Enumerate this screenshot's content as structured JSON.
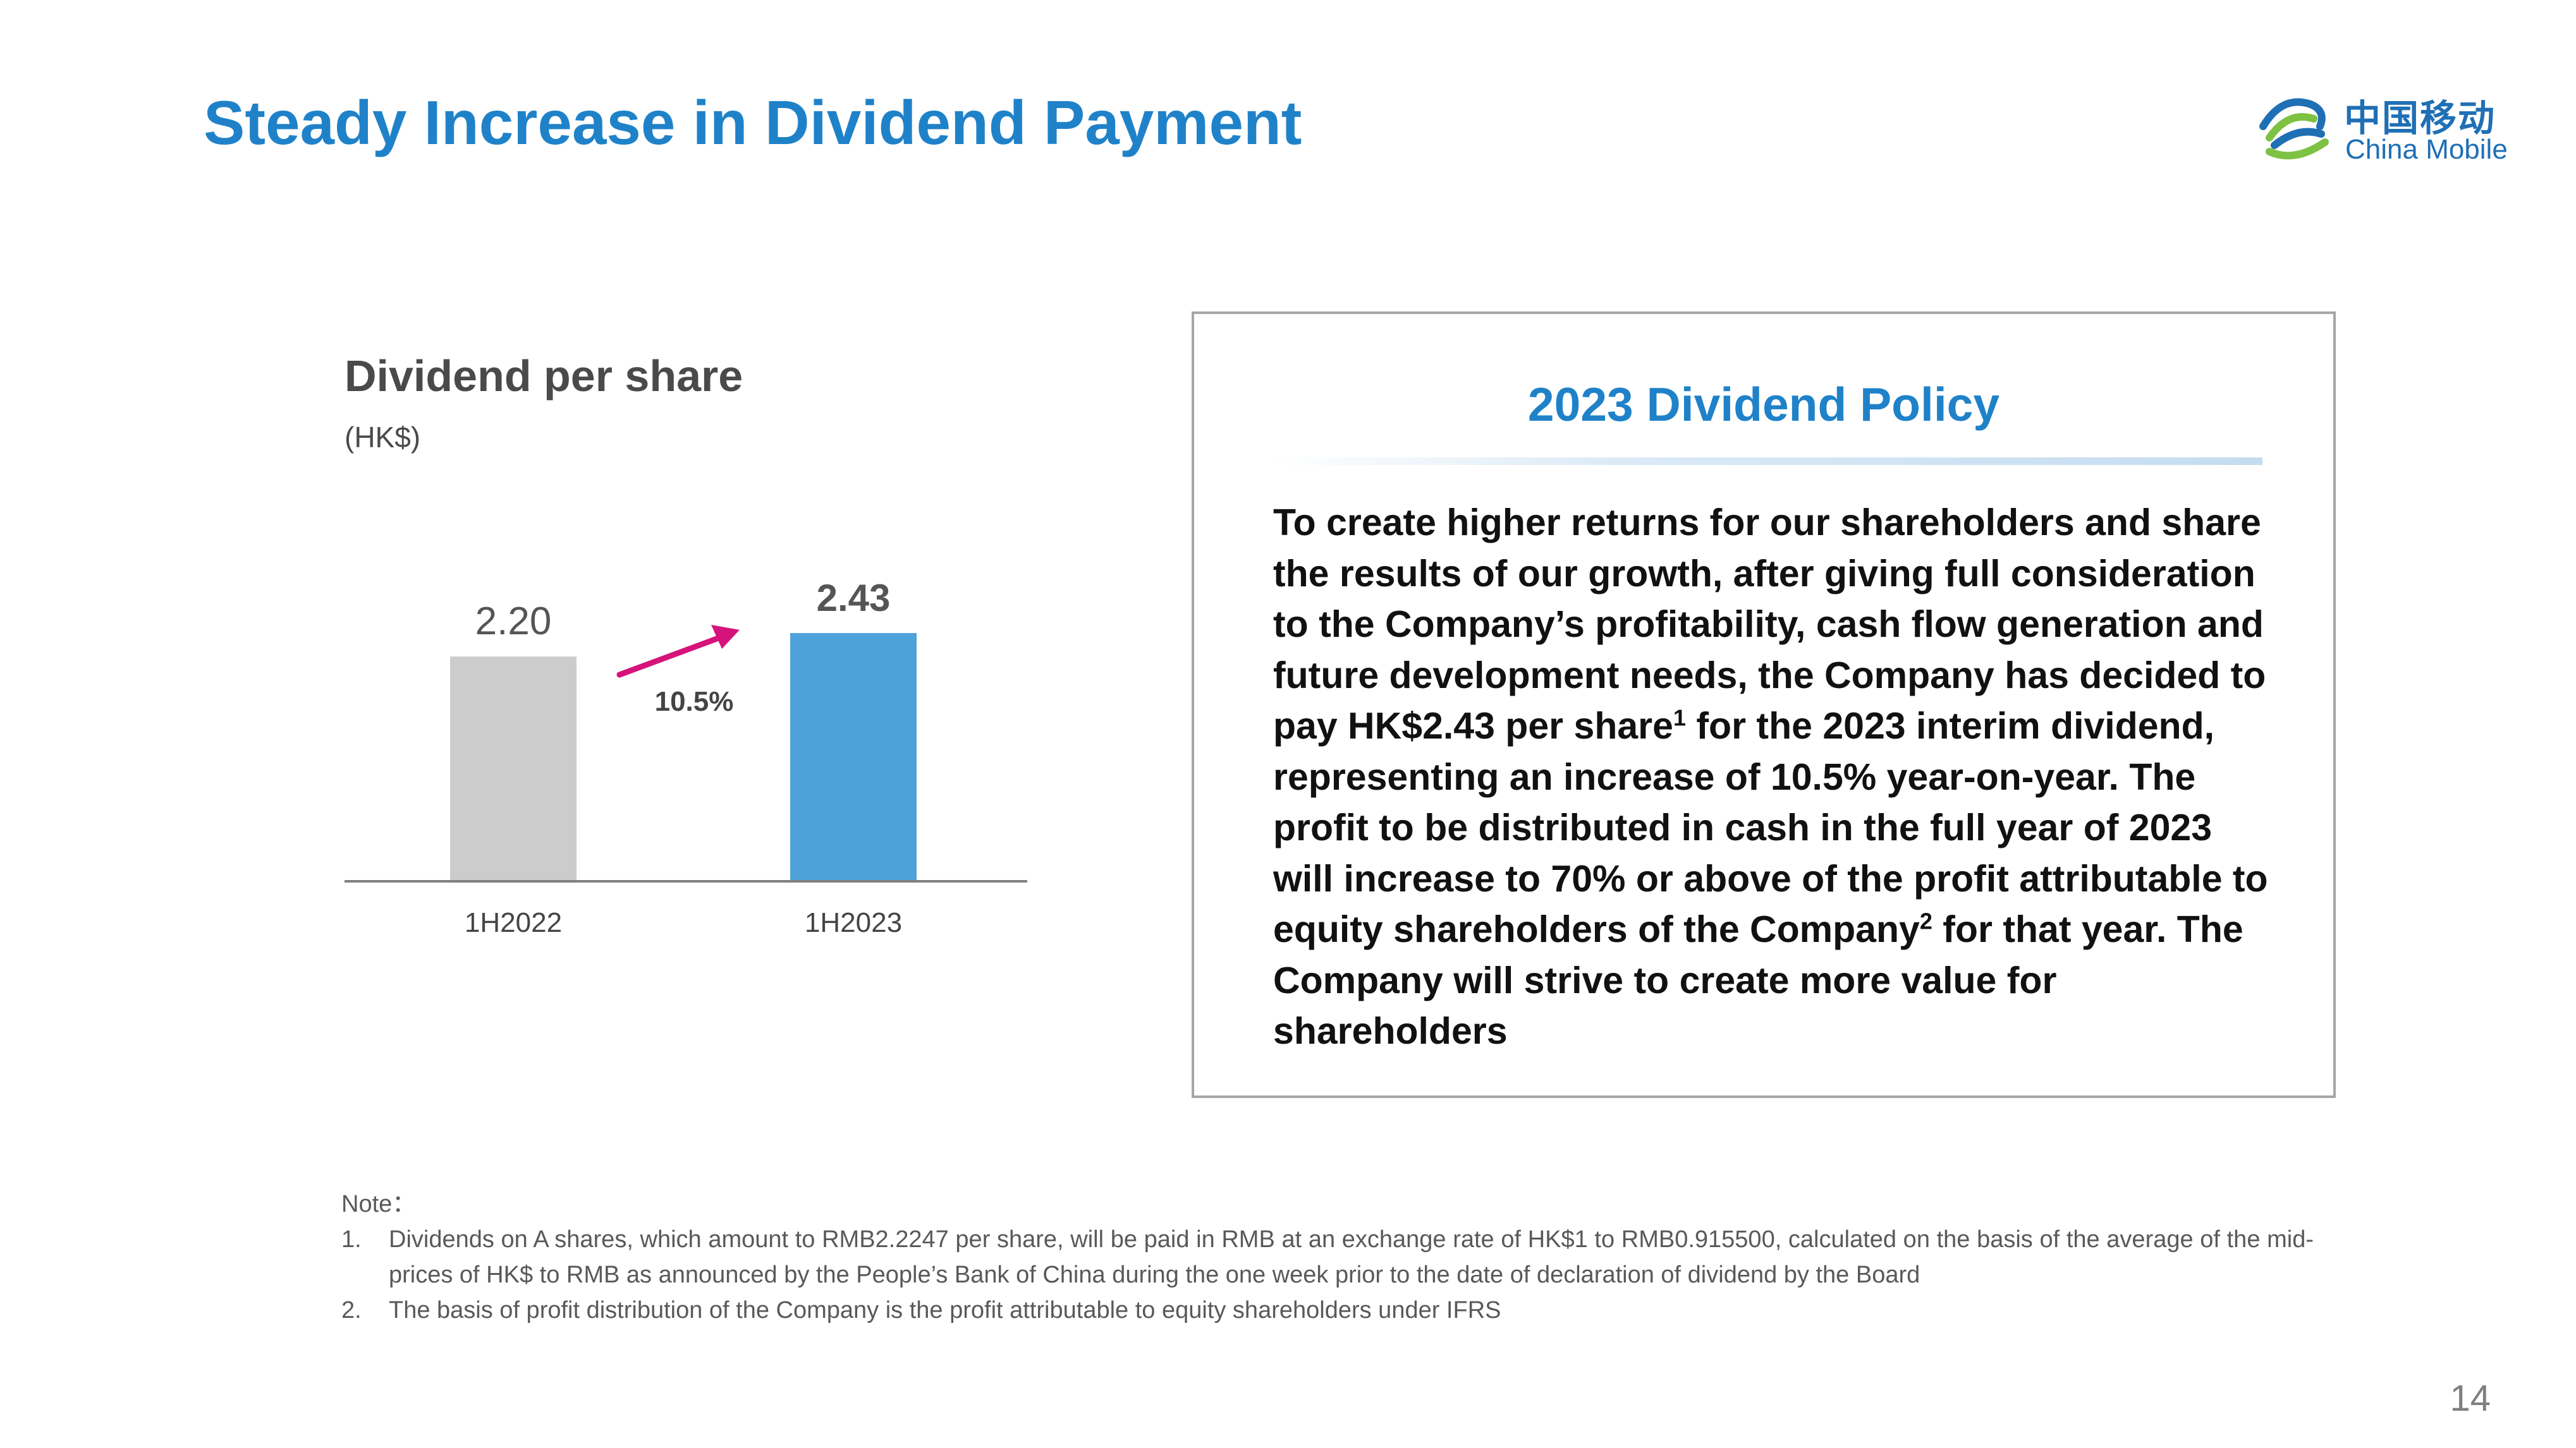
{
  "title": "Steady Increase in Dividend Payment",
  "logo": {
    "cn": "中国移动",
    "en": "China Mobile",
    "icon": "china-mobile-logo-icon"
  },
  "chart_data": {
    "type": "bar",
    "title": "Dividend per share",
    "subtitle": "(HK$)",
    "categories": [
      "1H2022",
      "1H2023"
    ],
    "values": [
      2.2,
      2.43
    ],
    "value_labels": [
      "2.20",
      "2.43"
    ],
    "bar_colors": [
      "#cccccc",
      "#4da3d9"
    ],
    "growth_label": "10.5%",
    "arrow_color": "#d6137a",
    "ylim": [
      0,
      2.43
    ],
    "grid": false
  },
  "policy": {
    "title": "2023 Dividend Policy",
    "part1": "To create higher returns for our shareholders and share the results of our growth, after giving full consideration to the Company’s profitability, cash flow generation and future development needs, the Company has decided to pay HK$2.43 per share",
    "sup1": "1",
    "part2": " for the 2023 interim dividend, representing an increase of 10.5% year-on-year. The profit to be distributed in cash in the full year of 2023 will increase to 70% or above of the profit attributable to equity shareholders of the Company",
    "sup2": "2",
    "part3": " for that year. The Company will strive to create more value for shareholders"
  },
  "notes": {
    "heading": "Note：",
    "items": [
      {
        "num": "1.",
        "text": "Dividends on A shares, which amount to RMB2.2247 per share, will be paid in RMB at an exchange rate of HK$1 to RMB0.915500, calculated on the basis of the average of the mid-prices of HK$ to RMB as announced by the People’s Bank of China during the one week prior to the date of declaration of dividend by the Board"
      },
      {
        "num": "2.",
        "text": "The basis of profit distribution of the Company is the profit attributable to equity shareholders under IFRS"
      }
    ]
  },
  "page_number": "14"
}
